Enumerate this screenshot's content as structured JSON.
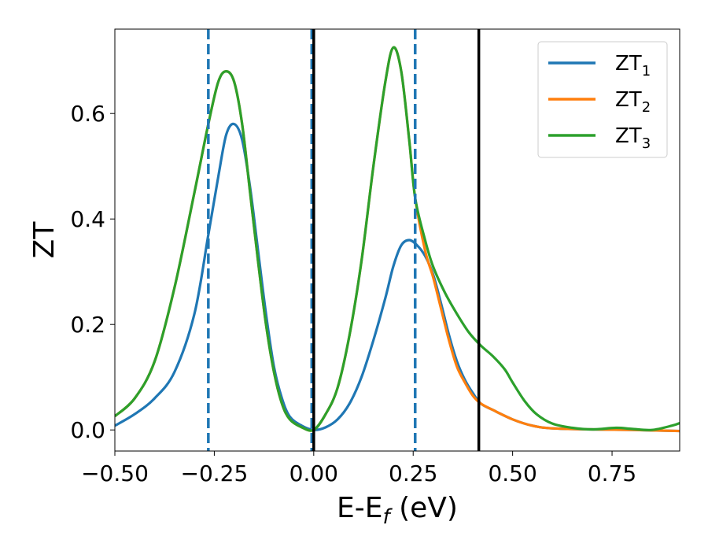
{
  "chart_data": {
    "type": "line",
    "xlabel_main": "E-E",
    "xlabel_sub": "f",
    "xlabel_unit": " (eV)",
    "ylabel": "ZT",
    "xlim": [
      -0.5,
      0.92
    ],
    "ylim": [
      -0.04,
      0.76
    ],
    "x_ticks": [
      -0.5,
      -0.25,
      0.0,
      0.25,
      0.5,
      0.75
    ],
    "x_tick_labels": [
      "−0.50",
      "−0.25",
      "0.00",
      "0.25",
      "0.50",
      "0.75"
    ],
    "y_ticks": [
      0.0,
      0.2,
      0.4,
      0.6
    ],
    "y_tick_labels": [
      "0.0",
      "0.2",
      "0.4",
      "0.6"
    ],
    "grid": false,
    "legend_position": "top-right",
    "vlines": [
      {
        "x": -0.265,
        "style": "dashed",
        "color": "#1f77b4"
      },
      {
        "x": -0.005,
        "style": "dashed",
        "color": "#1f77b4"
      },
      {
        "x": 0.255,
        "style": "dashed",
        "color": "#1f77b4"
      },
      {
        "x": 0.0,
        "style": "solid",
        "color": "#000000"
      },
      {
        "x": 0.415,
        "style": "solid",
        "color": "#000000"
      }
    ],
    "series": [
      {
        "name": "ZT1",
        "label_main": "ZT",
        "label_sub": "1",
        "color": "#1f77b4",
        "points": [
          [
            -0.5,
            0.008
          ],
          [
            -0.45,
            0.03
          ],
          [
            -0.4,
            0.06
          ],
          [
            -0.35,
            0.11
          ],
          [
            -0.3,
            0.22
          ],
          [
            -0.265,
            0.37
          ],
          [
            -0.24,
            0.48
          ],
          [
            -0.22,
            0.56
          ],
          [
            -0.2,
            0.58
          ],
          [
            -0.18,
            0.55
          ],
          [
            -0.16,
            0.46
          ],
          [
            -0.14,
            0.34
          ],
          [
            -0.12,
            0.22
          ],
          [
            -0.1,
            0.12
          ],
          [
            -0.08,
            0.06
          ],
          [
            -0.06,
            0.025
          ],
          [
            -0.03,
            0.008
          ],
          [
            0.0,
            0.0
          ],
          [
            0.03,
            0.005
          ],
          [
            0.06,
            0.02
          ],
          [
            0.09,
            0.05
          ],
          [
            0.12,
            0.1
          ],
          [
            0.15,
            0.17
          ],
          [
            0.18,
            0.25
          ],
          [
            0.2,
            0.31
          ],
          [
            0.22,
            0.35
          ],
          [
            0.24,
            0.36
          ],
          [
            0.26,
            0.35
          ],
          [
            0.28,
            0.33
          ],
          [
            0.3,
            0.295
          ],
          [
            0.32,
            0.24
          ],
          [
            0.34,
            0.18
          ],
          [
            0.36,
            0.13
          ],
          [
            0.38,
            0.095
          ],
          [
            0.4,
            0.07
          ],
          [
            0.42,
            0.05
          ],
          [
            0.45,
            0.038
          ],
          [
            0.5,
            0.02
          ],
          [
            0.55,
            0.008
          ],
          [
            0.6,
            0.003
          ],
          [
            0.7,
            0.001
          ],
          [
            0.8,
            0.0
          ],
          [
            0.92,
            -0.002
          ]
        ]
      },
      {
        "name": "ZT2",
        "label_main": "ZT",
        "label_sub": "2",
        "color": "#ff7f0e",
        "points": [
          [
            -0.5,
            0.026
          ],
          [
            -0.45,
            0.06
          ],
          [
            -0.4,
            0.13
          ],
          [
            -0.35,
            0.27
          ],
          [
            -0.3,
            0.45
          ],
          [
            -0.265,
            0.58
          ],
          [
            -0.24,
            0.66
          ],
          [
            -0.22,
            0.68
          ],
          [
            -0.2,
            0.66
          ],
          [
            -0.18,
            0.58
          ],
          [
            -0.16,
            0.45
          ],
          [
            -0.14,
            0.32
          ],
          [
            -0.12,
            0.2
          ],
          [
            -0.1,
            0.11
          ],
          [
            -0.08,
            0.05
          ],
          [
            -0.06,
            0.02
          ],
          [
            -0.03,
            0.005
          ],
          [
            0.0,
            0.0
          ],
          [
            0.03,
            0.03
          ],
          [
            0.06,
            0.08
          ],
          [
            0.09,
            0.18
          ],
          [
            0.12,
            0.32
          ],
          [
            0.15,
            0.5
          ],
          [
            0.18,
            0.66
          ],
          [
            0.2,
            0.725
          ],
          [
            0.22,
            0.68
          ],
          [
            0.24,
            0.55
          ],
          [
            0.255,
            0.44
          ],
          [
            0.28,
            0.34
          ],
          [
            0.3,
            0.29
          ],
          [
            0.32,
            0.23
          ],
          [
            0.34,
            0.17
          ],
          [
            0.36,
            0.12
          ],
          [
            0.38,
            0.09
          ],
          [
            0.4,
            0.065
          ],
          [
            0.42,
            0.05
          ],
          [
            0.45,
            0.038
          ],
          [
            0.5,
            0.02
          ],
          [
            0.55,
            0.008
          ],
          [
            0.6,
            0.003
          ],
          [
            0.7,
            0.001
          ],
          [
            0.8,
            0.0
          ],
          [
            0.92,
            -0.002
          ]
        ]
      },
      {
        "name": "ZT3",
        "label_main": "ZT",
        "label_sub": "3",
        "color": "#2ca02c",
        "points": [
          [
            -0.5,
            0.026
          ],
          [
            -0.45,
            0.06
          ],
          [
            -0.4,
            0.13
          ],
          [
            -0.35,
            0.27
          ],
          [
            -0.3,
            0.45
          ],
          [
            -0.265,
            0.58
          ],
          [
            -0.24,
            0.66
          ],
          [
            -0.22,
            0.68
          ],
          [
            -0.2,
            0.66
          ],
          [
            -0.18,
            0.58
          ],
          [
            -0.16,
            0.45
          ],
          [
            -0.14,
            0.32
          ],
          [
            -0.12,
            0.2
          ],
          [
            -0.1,
            0.11
          ],
          [
            -0.08,
            0.05
          ],
          [
            -0.06,
            0.02
          ],
          [
            -0.03,
            0.005
          ],
          [
            0.0,
            0.0
          ],
          [
            0.03,
            0.03
          ],
          [
            0.06,
            0.08
          ],
          [
            0.09,
            0.18
          ],
          [
            0.12,
            0.32
          ],
          [
            0.15,
            0.5
          ],
          [
            0.18,
            0.66
          ],
          [
            0.2,
            0.725
          ],
          [
            0.22,
            0.68
          ],
          [
            0.24,
            0.55
          ],
          [
            0.255,
            0.44
          ],
          [
            0.28,
            0.36
          ],
          [
            0.3,
            0.31
          ],
          [
            0.33,
            0.26
          ],
          [
            0.36,
            0.22
          ],
          [
            0.39,
            0.185
          ],
          [
            0.42,
            0.16
          ],
          [
            0.45,
            0.14
          ],
          [
            0.48,
            0.115
          ],
          [
            0.5,
            0.09
          ],
          [
            0.53,
            0.055
          ],
          [
            0.56,
            0.03
          ],
          [
            0.6,
            0.012
          ],
          [
            0.65,
            0.004
          ],
          [
            0.7,
            0.001
          ],
          [
            0.76,
            0.004
          ],
          [
            0.8,
            0.002
          ],
          [
            0.85,
            0.0
          ],
          [
            0.9,
            0.008
          ],
          [
            0.92,
            0.013
          ]
        ]
      }
    ]
  }
}
